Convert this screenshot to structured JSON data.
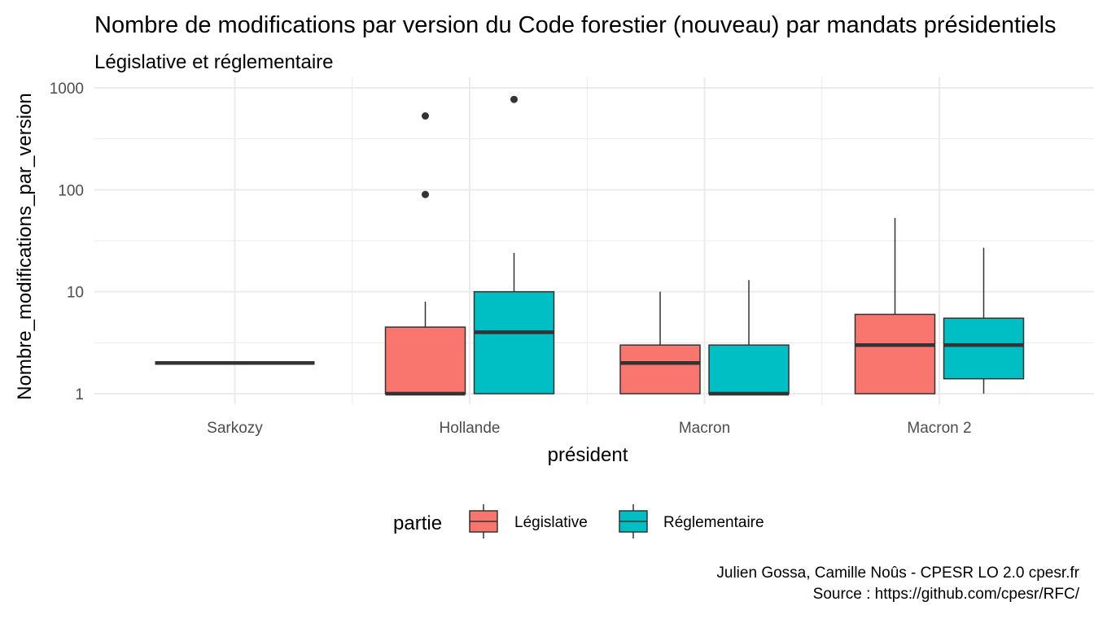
{
  "chart_data": {
    "type": "boxplot",
    "title": "Nombre de modifications par version du Code forestier (nouveau) par mandats présidentiels",
    "subtitle": "Législative et réglementaire",
    "xlabel": "président",
    "ylabel": "Nombre_modifications_par_version",
    "y_scale": "log10",
    "ylim": [
      0.9,
      1100
    ],
    "y_ticks": [
      1,
      10,
      100,
      1000
    ],
    "y_tick_labels": [
      "1",
      "10",
      "100",
      "1000"
    ],
    "categories": [
      "Sarkozy",
      "Hollande",
      "Macron",
      "Macron 2"
    ],
    "legend": {
      "title": "partie",
      "position": "bottom",
      "entries": [
        {
          "name": "Législative",
          "color": "#F8766D"
        },
        {
          "name": "Réglementaire",
          "color": "#00BFC4"
        }
      ]
    },
    "series": [
      {
        "name": "Législative",
        "color": "#F8766D",
        "boxes": [
          {
            "category": "Sarkozy",
            "min": 2,
            "q1": 2,
            "median": 2,
            "q3": 2,
            "max": 2,
            "outliers": [],
            "single": true
          },
          {
            "category": "Hollande",
            "min": 1,
            "q1": 1,
            "median": 1,
            "q3": 4.5,
            "max": 8,
            "outliers": [
              90,
              530
            ]
          },
          {
            "category": "Macron",
            "min": 1,
            "q1": 1,
            "median": 2,
            "q3": 3,
            "max": 10,
            "outliers": []
          },
          {
            "category": "Macron 2",
            "min": 1,
            "q1": 1,
            "median": 3,
            "q3": 6,
            "max": 53,
            "outliers": []
          }
        ]
      },
      {
        "name": "Réglementaire",
        "color": "#00BFC4",
        "boxes": [
          {
            "category": "Hollande",
            "min": 1,
            "q1": 1,
            "median": 4,
            "q3": 10,
            "max": 24,
            "outliers": [
              770
            ]
          },
          {
            "category": "Macron",
            "min": 1,
            "q1": 1,
            "median": 1,
            "q3": 3,
            "max": 13,
            "outliers": []
          },
          {
            "category": "Macron 2",
            "min": 1,
            "q1": 1.4,
            "median": 3,
            "q3": 5.5,
            "max": 27,
            "outliers": []
          }
        ]
      }
    ],
    "caption": [
      "Julien Gossa, Camille Noûs - CPESR LO 2.0 cpesr.fr",
      "Source : https://github.com/cpesr/RFC/"
    ],
    "grid": true,
    "theme": "minimal"
  }
}
